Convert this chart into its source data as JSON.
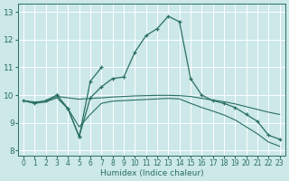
{
  "xlabel": "Humidex (Indice chaleur)",
  "xlim": [
    -0.5,
    23.5
  ],
  "ylim": [
    7.8,
    13.3
  ],
  "yticks": [
    8,
    9,
    10,
    11,
    12,
    13
  ],
  "xticks": [
    0,
    1,
    2,
    3,
    4,
    5,
    6,
    7,
    8,
    9,
    10,
    11,
    12,
    13,
    14,
    15,
    16,
    17,
    18,
    19,
    20,
    21,
    22,
    23
  ],
  "bg_color": "#cce8e8",
  "line_color": "#2a7060",
  "line1": {
    "x": [
      0,
      1,
      2,
      3,
      4,
      5,
      6,
      7,
      8,
      9,
      10,
      11,
      12,
      13,
      14,
      15,
      16,
      17,
      18,
      19,
      20,
      21,
      22,
      23
    ],
    "y": [
      9.8,
      9.7,
      9.8,
      10.0,
      9.5,
      8.5,
      9.9,
      10.3,
      10.6,
      10.65,
      11.55,
      12.15,
      12.4,
      12.85,
      12.65,
      10.6,
      10.0,
      9.8,
      9.7,
      9.55,
      9.3,
      9.05,
      8.55,
      8.4
    ],
    "marker": true
  },
  "line2": {
    "x": [
      0,
      1,
      2,
      3,
      4,
      5,
      6,
      7,
      8,
      9,
      10,
      11,
      12,
      13,
      14,
      15,
      16,
      17,
      18,
      19,
      20,
      21,
      22,
      23
    ],
    "y": [
      9.8,
      9.75,
      9.78,
      9.95,
      9.9,
      9.85,
      9.88,
      9.9,
      9.93,
      9.95,
      9.97,
      9.98,
      9.99,
      9.99,
      9.98,
      9.95,
      9.88,
      9.82,
      9.76,
      9.68,
      9.58,
      9.48,
      9.38,
      9.3
    ],
    "marker": false
  },
  "line3": {
    "x": [
      0,
      1,
      2,
      3,
      4,
      5,
      6,
      7,
      8,
      9,
      10,
      11,
      12,
      13,
      14,
      15,
      16,
      17,
      18,
      19,
      20,
      21,
      22,
      23
    ],
    "y": [
      9.8,
      9.7,
      9.75,
      9.9,
      9.5,
      8.85,
      9.3,
      9.7,
      9.78,
      9.8,
      9.82,
      9.84,
      9.86,
      9.88,
      9.86,
      9.7,
      9.55,
      9.42,
      9.28,
      9.1,
      8.85,
      8.6,
      8.3,
      8.15
    ],
    "marker": false
  },
  "line4": {
    "x": [
      3,
      4,
      5,
      6,
      7
    ],
    "y": [
      10.0,
      9.5,
      8.5,
      10.5,
      11.0
    ],
    "marker": true
  }
}
